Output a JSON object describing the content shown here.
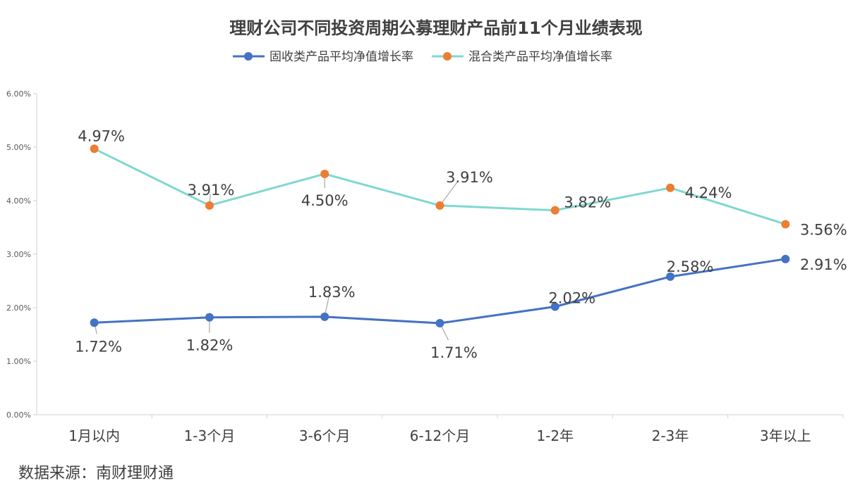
{
  "source_text": "数据来源：南财理财通",
  "chart_data": {
    "type": "line",
    "title": "理财公司不同投资周期公募理财产品前11个月业绩表现",
    "categories": [
      "1月以内",
      "1-3个月",
      "3-6个月",
      "6-12个月",
      "1-2年",
      "2-3年",
      "3年以上"
    ],
    "series": [
      {
        "name": "固收类产品平均净值增长率",
        "color": "#4472C4",
        "values": [
          1.72,
          1.82,
          1.83,
          1.71,
          2.02,
          2.58,
          2.91
        ],
        "labels": [
          "1.72%",
          "1.82%",
          "1.83%",
          "1.71%",
          "2.02%",
          "2.58%",
          "2.91%"
        ]
      },
      {
        "name": "混合类产品平均净值增长率",
        "color": "#7FD8D0",
        "marker_color": "#ED7D31",
        "values": [
          4.97,
          3.91,
          4.5,
          3.91,
          3.82,
          4.24,
          3.56
        ],
        "labels": [
          "4.97%",
          "3.91%",
          "4.50%",
          "3.91%",
          "3.82%",
          "4.24%",
          "3.56%"
        ]
      }
    ],
    "yticks": [
      "0.00%",
      "1.00%",
      "2.00%",
      "3.00%",
      "4.00%",
      "5.00%",
      "6.00%"
    ],
    "ylim": [
      0,
      6
    ],
    "legend_position": "top",
    "grid": false
  }
}
